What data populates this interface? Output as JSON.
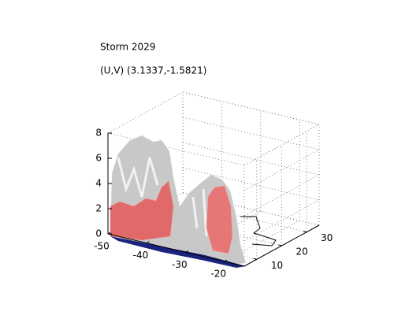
{
  "chart_data": {
    "type": "surface3d",
    "title": "Storm 2029",
    "subtitle": "(U,V) (3.1337,-1.5821)",
    "xlim": [
      -50,
      -15
    ],
    "xticks": [
      -50,
      -40,
      -30,
      -20
    ],
    "ylim": [
      5,
      35
    ],
    "yticks": [
      10,
      20,
      30
    ],
    "zlim": [
      0,
      8
    ],
    "zticks": [
      0,
      2,
      4,
      6,
      8
    ],
    "grid": true
  }
}
